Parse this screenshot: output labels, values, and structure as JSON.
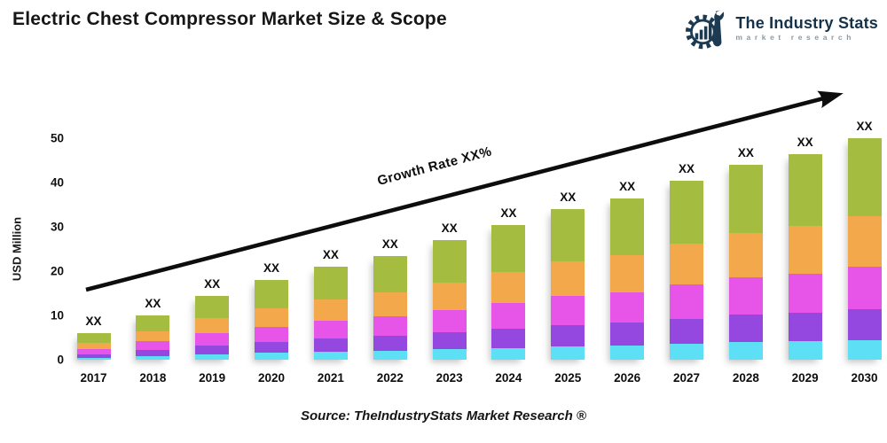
{
  "header": {
    "title": "Electric Chest Compressor Market Size & Scope",
    "logo": {
      "name": "The Industry Stats",
      "subtitle": "market research",
      "brand_color": "#1c3a52",
      "subtitle_color": "#8c9aa3"
    }
  },
  "footer": {
    "source": "Source: TheIndustryStats Market Research ®"
  },
  "chart_data": {
    "type": "bar",
    "stacked": true,
    "title": "Electric Chest Compressor Market Size & Scope",
    "xlabel": "",
    "ylabel": "USD Million",
    "ylim": [
      0,
      52
    ],
    "yticks": [
      0,
      10,
      20,
      30,
      40,
      50
    ],
    "grid": false,
    "legend": false,
    "categories": [
      "2017",
      "2018",
      "2019",
      "2020",
      "2021",
      "2022",
      "2023",
      "2024",
      "2025",
      "2026",
      "2027",
      "2028",
      "2029",
      "2030"
    ],
    "bar_value_label": "XX",
    "growth_annotation": "Growth Rate XX%",
    "totals_estimated": [
      6,
      10,
      14.5,
      18,
      21,
      23.5,
      27,
      30.5,
      34,
      36.5,
      40.5,
      44,
      46.5,
      50
    ],
    "series": [
      {
        "name": "segment-1-bottom",
        "color": "#5ddff5",
        "values": [
          0.5,
          0.9,
          1.3,
          1.6,
          1.9,
          2.1,
          2.4,
          2.7,
          3.1,
          3.3,
          3.6,
          4.0,
          4.2,
          4.5
        ]
      },
      {
        "name": "segment-2",
        "color": "#9448e0",
        "values": [
          0.8,
          1.4,
          2.0,
          2.5,
          2.9,
          3.3,
          3.8,
          4.3,
          4.8,
          5.1,
          5.7,
          6.2,
          6.5,
          7.0
        ]
      },
      {
        "name": "segment-3",
        "color": "#e755e8",
        "values": [
          1.1,
          1.9,
          2.8,
          3.4,
          4.0,
          4.5,
          5.1,
          5.8,
          6.5,
          6.9,
          7.7,
          8.4,
          8.8,
          9.5
        ]
      },
      {
        "name": "segment-4",
        "color": "#f4a84c",
        "values": [
          1.4,
          2.3,
          3.3,
          4.1,
          4.8,
          5.4,
          6.2,
          7.0,
          7.8,
          8.4,
          9.3,
          10.1,
          10.7,
          11.5
        ]
      },
      {
        "name": "segment-5-top",
        "color": "#a4bd41",
        "values": [
          2.2,
          3.5,
          5.1,
          6.4,
          7.4,
          8.2,
          9.5,
          10.7,
          11.8,
          12.8,
          14.2,
          15.3,
          16.3,
          17.5
        ]
      }
    ]
  }
}
